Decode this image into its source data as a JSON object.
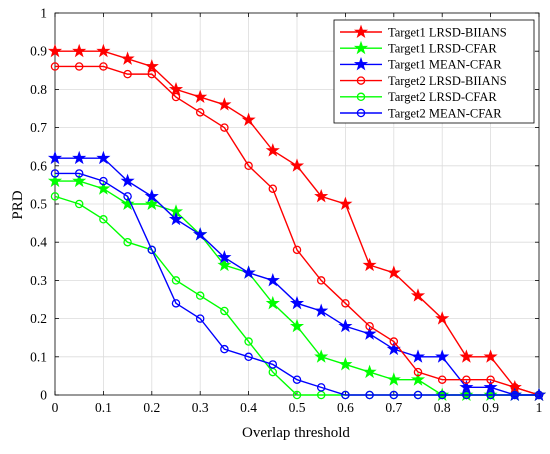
{
  "chart_data": {
    "type": "line",
    "xlabel": "Overlap threshold",
    "ylabel": "PRD",
    "xlim": [
      0,
      1
    ],
    "ylim": [
      0,
      1
    ],
    "xticks": [
      0,
      0.1,
      0.2,
      0.3,
      0.4,
      0.5,
      0.6,
      0.7,
      0.8,
      0.9,
      1
    ],
    "yticks": [
      0,
      0.1,
      0.2,
      0.3,
      0.4,
      0.5,
      0.6,
      0.7,
      0.8,
      0.9,
      1
    ],
    "xtick_labels": [
      "0",
      "0.1",
      "0.2",
      "0.3",
      "0.4",
      "0.5",
      "0.6",
      "0.7",
      "0.8",
      "0.9",
      "1"
    ],
    "ytick_labels": [
      "0",
      "0.1",
      "0.2",
      "0.3",
      "0.4",
      "0.5",
      "0.6",
      "0.7",
      "0.8",
      "0.9",
      "1"
    ],
    "grid": true,
    "legend_position": "top-right",
    "x": [
      0,
      0.05,
      0.1,
      0.15,
      0.2,
      0.25,
      0.3,
      0.35,
      0.4,
      0.45,
      0.5,
      0.55,
      0.6,
      0.65,
      0.7,
      0.75,
      0.8,
      0.85,
      0.9,
      0.95,
      1
    ],
    "series": [
      {
        "name": "Target1 LRSD-BIIANS",
        "color": "#ff0000",
        "marker": "star",
        "values": [
          0.9,
          0.9,
          0.9,
          0.88,
          0.86,
          0.8,
          0.78,
          0.76,
          0.72,
          0.64,
          0.6,
          0.52,
          0.5,
          0.34,
          0.32,
          0.26,
          0.2,
          0.1,
          0.1,
          0.02,
          0.0
        ]
      },
      {
        "name": "Target1 LRSD-CFAR",
        "color": "#00ff00",
        "marker": "star",
        "values": [
          0.56,
          0.56,
          0.54,
          0.5,
          0.5,
          0.48,
          0.42,
          0.34,
          0.32,
          0.24,
          0.18,
          0.1,
          0.08,
          0.06,
          0.04,
          0.04,
          0.0,
          0.0,
          0.0,
          0.0,
          0.0
        ]
      },
      {
        "name": "Target1 MEAN-CFAR",
        "color": "#0000ff",
        "marker": "star",
        "values": [
          0.62,
          0.62,
          0.62,
          0.56,
          0.52,
          0.46,
          0.42,
          0.36,
          0.32,
          0.3,
          0.24,
          0.22,
          0.18,
          0.16,
          0.12,
          0.1,
          0.1,
          0.02,
          0.02,
          0.0,
          0.0
        ]
      },
      {
        "name": "Target2 LRSD-BIIANS",
        "color": "#ff0000",
        "marker": "circle",
        "values": [
          0.86,
          0.86,
          0.86,
          0.84,
          0.84,
          0.78,
          0.74,
          0.7,
          0.6,
          0.54,
          0.38,
          0.3,
          0.24,
          0.18,
          0.14,
          0.06,
          0.04,
          0.04,
          0.04,
          0.02,
          0.0
        ]
      },
      {
        "name": "Target2 LRSD-CFAR",
        "color": "#00ff00",
        "marker": "circle",
        "values": [
          0.52,
          0.5,
          0.46,
          0.4,
          0.38,
          0.3,
          0.26,
          0.22,
          0.14,
          0.06,
          0.0,
          0.0,
          0.0,
          0.0,
          0.0,
          0.0,
          0.0,
          0.0,
          0.0,
          0.0,
          0.0
        ]
      },
      {
        "name": "Target2 MEAN-CFAR",
        "color": "#0000ff",
        "marker": "circle",
        "values": [
          0.58,
          0.58,
          0.56,
          0.52,
          0.38,
          0.24,
          0.2,
          0.12,
          0.1,
          0.08,
          0.04,
          0.02,
          0.0,
          0.0,
          0.0,
          0.0,
          0.0,
          0.0,
          0.0,
          0.0,
          0.0
        ]
      }
    ]
  }
}
